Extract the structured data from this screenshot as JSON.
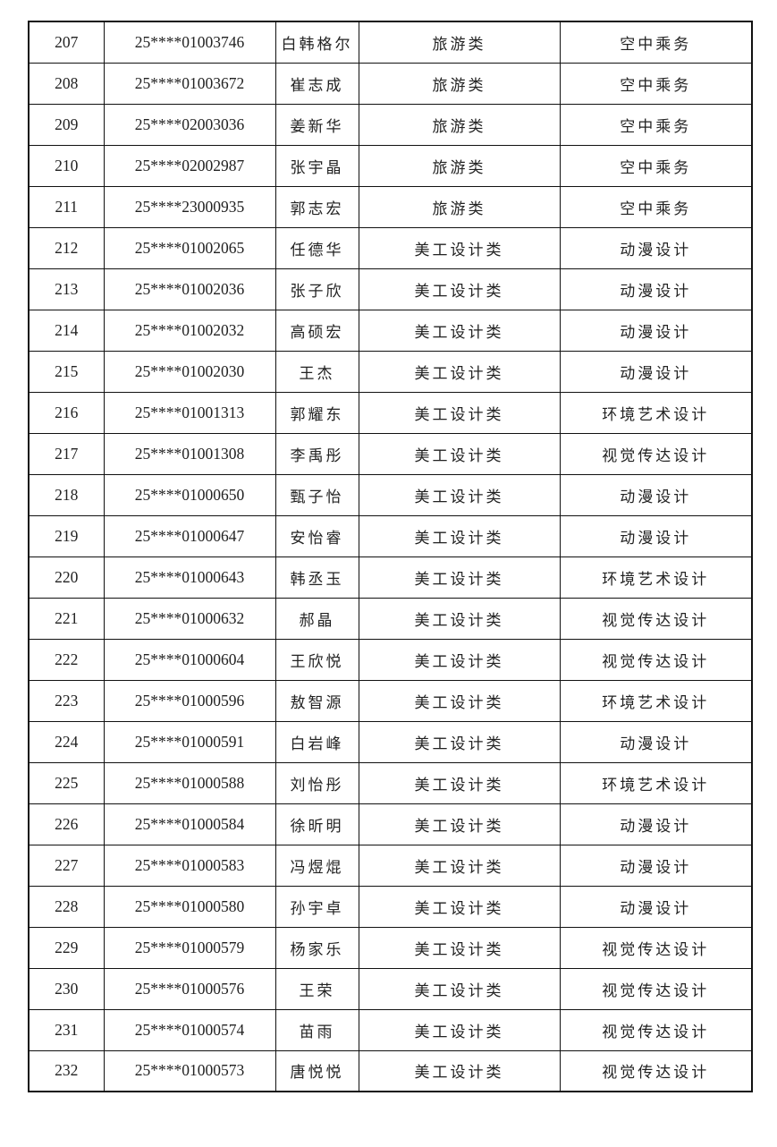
{
  "table": {
    "rows": [
      [
        "207",
        "25****01003746",
        "白韩格尔",
        "旅游类",
        "空中乘务"
      ],
      [
        "208",
        "25****01003672",
        "崔志成",
        "旅游类",
        "空中乘务"
      ],
      [
        "209",
        "25****02003036",
        "姜新华",
        "旅游类",
        "空中乘务"
      ],
      [
        "210",
        "25****02002987",
        "张宇晶",
        "旅游类",
        "空中乘务"
      ],
      [
        "211",
        "25****23000935",
        "郭志宏",
        "旅游类",
        "空中乘务"
      ],
      [
        "212",
        "25****01002065",
        "任德华",
        "美工设计类",
        "动漫设计"
      ],
      [
        "213",
        "25****01002036",
        "张子欣",
        "美工设计类",
        "动漫设计"
      ],
      [
        "214",
        "25****01002032",
        "高硕宏",
        "美工设计类",
        "动漫设计"
      ],
      [
        "215",
        "25****01002030",
        "王杰",
        "美工设计类",
        "动漫设计"
      ],
      [
        "216",
        "25****01001313",
        "郭耀东",
        "美工设计类",
        "环境艺术设计"
      ],
      [
        "217",
        "25****01001308",
        "李禹彤",
        "美工设计类",
        "视觉传达设计"
      ],
      [
        "218",
        "25****01000650",
        "甄子怡",
        "美工设计类",
        "动漫设计"
      ],
      [
        "219",
        "25****01000647",
        "安怡睿",
        "美工设计类",
        "动漫设计"
      ],
      [
        "220",
        "25****01000643",
        "韩丞玉",
        "美工设计类",
        "环境艺术设计"
      ],
      [
        "221",
        "25****01000632",
        "郝晶",
        "美工设计类",
        "视觉传达设计"
      ],
      [
        "222",
        "25****01000604",
        "王欣悦",
        "美工设计类",
        "视觉传达设计"
      ],
      [
        "223",
        "25****01000596",
        "敖智源",
        "美工设计类",
        "环境艺术设计"
      ],
      [
        "224",
        "25****01000591",
        "白岩峰",
        "美工设计类",
        "动漫设计"
      ],
      [
        "225",
        "25****01000588",
        "刘怡彤",
        "美工设计类",
        "环境艺术设计"
      ],
      [
        "226",
        "25****01000584",
        "徐昕明",
        "美工设计类",
        "动漫设计"
      ],
      [
        "227",
        "25****01000583",
        "冯煜焜",
        "美工设计类",
        "动漫设计"
      ],
      [
        "228",
        "25****01000580",
        "孙宇卓",
        "美工设计类",
        "动漫设计"
      ],
      [
        "229",
        "25****01000579",
        "杨家乐",
        "美工设计类",
        "视觉传达设计"
      ],
      [
        "230",
        "25****01000576",
        "王荣",
        "美工设计类",
        "视觉传达设计"
      ],
      [
        "231",
        "25****01000574",
        "苗雨",
        "美工设计类",
        "视觉传达设计"
      ],
      [
        "232",
        "25****01000573",
        "唐悦悦",
        "美工设计类",
        "视觉传达设计"
      ]
    ]
  }
}
